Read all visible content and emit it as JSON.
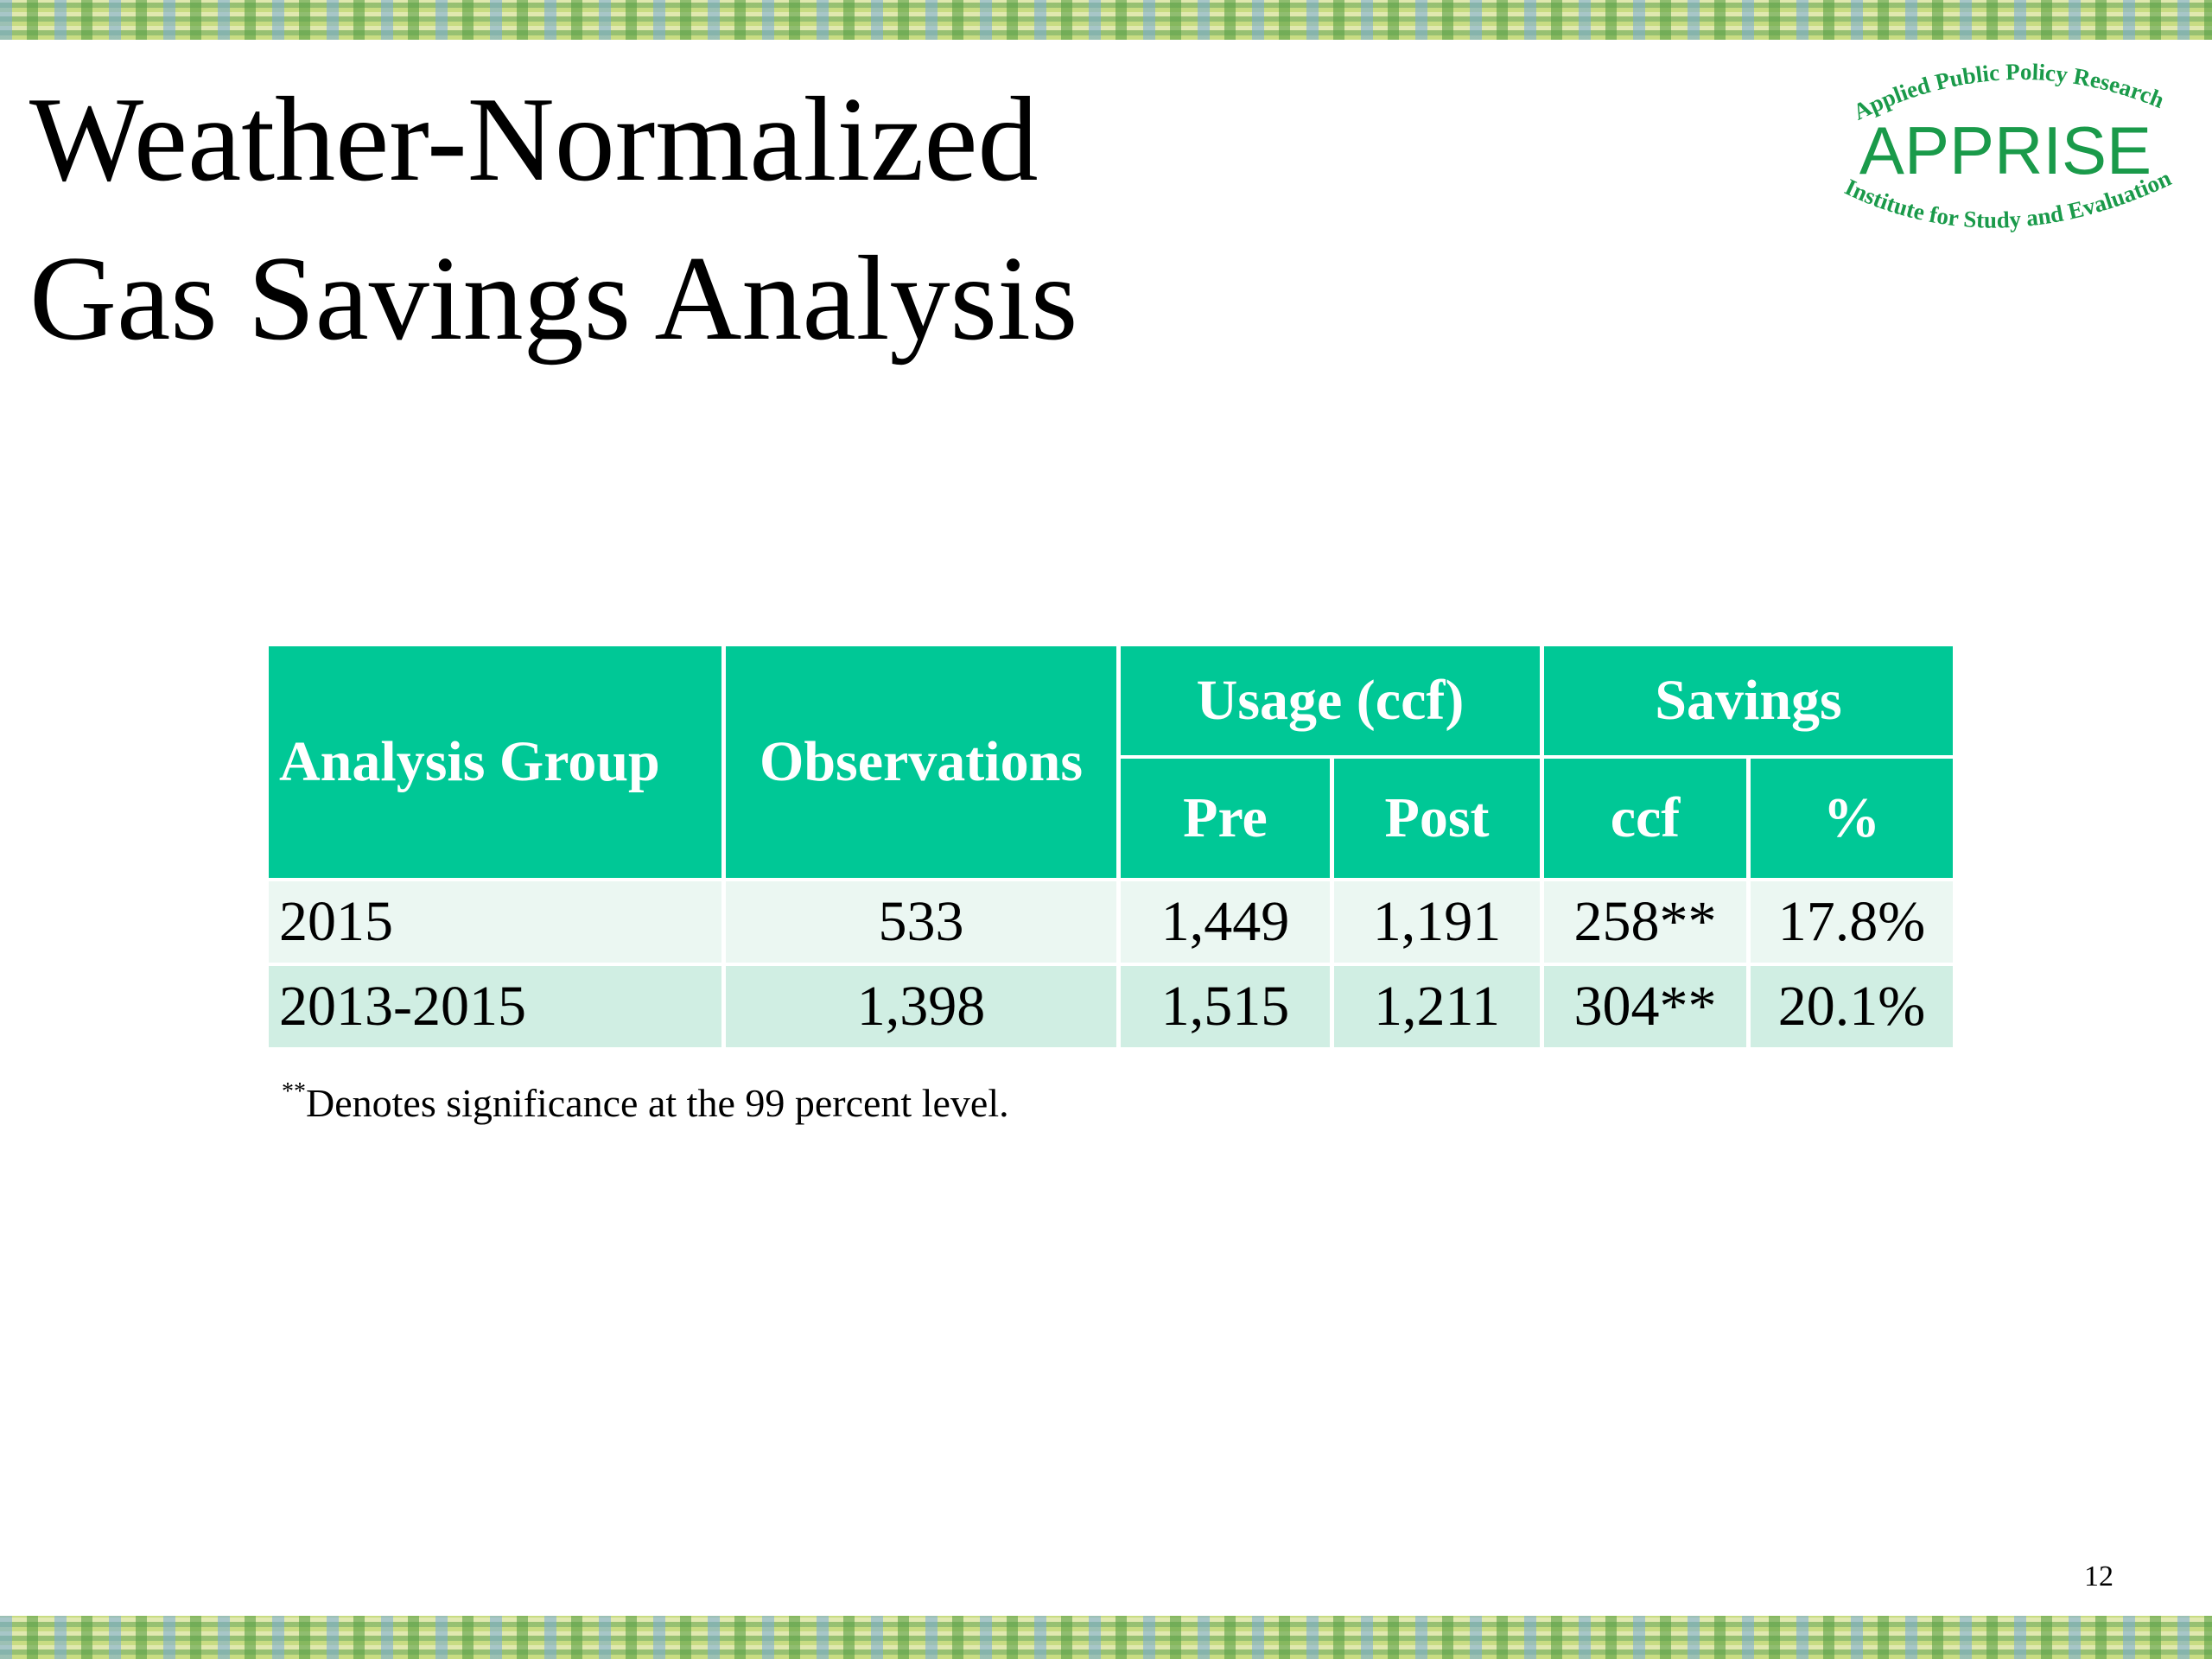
{
  "slide": {
    "title_line1": "Weather-Normalized",
    "title_line2": "Gas Savings Analysis",
    "page_number": "12"
  },
  "logo": {
    "top_text": "Applied Public Policy Research",
    "name": "APPRISE",
    "bottom_text": "Institute for Study and Evaluation",
    "color": "#1a9a4a"
  },
  "table": {
    "header": {
      "analysis_group": "Analysis Group",
      "observations": "Observations",
      "usage": "Usage (ccf)",
      "savings": "Savings",
      "pre": "Pre",
      "post": "Post",
      "ccf": "ccf",
      "percent": "%"
    },
    "rows": [
      {
        "group": "2015",
        "observations": "533",
        "pre": "1,449",
        "post": "1,191",
        "savings_ccf": "258**",
        "savings_pct": "17.8%"
      },
      {
        "group": "2013-2015",
        "observations": "1,398",
        "pre": "1,515",
        "post": "1,211",
        "savings_ccf": "304**",
        "savings_pct": "20.1%"
      }
    ],
    "header_color": "#00c896"
  },
  "footnote": {
    "marker": "**",
    "text": "Denotes significance at the 99 percent level."
  }
}
